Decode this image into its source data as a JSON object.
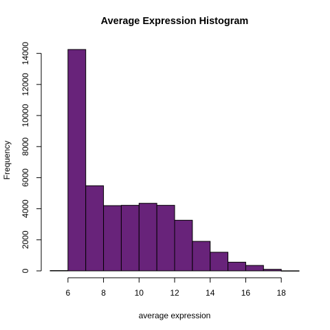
{
  "chart_data": {
    "type": "bar",
    "title": "Average Expression Histogram",
    "xlabel": "average expression",
    "ylabel": "Frequency",
    "bar_color": "#68237a",
    "bins": [
      {
        "start": 5,
        "end": 6,
        "count": 20
      },
      {
        "start": 6,
        "end": 7,
        "count": 14250
      },
      {
        "start": 7,
        "end": 8,
        "count": 5480
      },
      {
        "start": 8,
        "end": 9,
        "count": 4200
      },
      {
        "start": 9,
        "end": 10,
        "count": 4220
      },
      {
        "start": 10,
        "end": 11,
        "count": 4350
      },
      {
        "start": 11,
        "end": 12,
        "count": 4220
      },
      {
        "start": 12,
        "end": 13,
        "count": 3260
      },
      {
        "start": 13,
        "end": 14,
        "count": 1900
      },
      {
        "start": 14,
        "end": 15,
        "count": 1200
      },
      {
        "start": 15,
        "end": 16,
        "count": 560
      },
      {
        "start": 16,
        "end": 17,
        "count": 350
      },
      {
        "start": 17,
        "end": 18,
        "count": 100
      },
      {
        "start": 18,
        "end": 19,
        "count": 5
      }
    ],
    "xlim": [
      5,
      19
    ],
    "ylim": [
      0,
      14250
    ],
    "xticks": [
      6,
      8,
      10,
      12,
      14,
      16,
      18
    ],
    "yticks": [
      0,
      2000,
      4000,
      6000,
      8000,
      10000,
      12000,
      14000
    ],
    "grid": false,
    "legend": "none"
  }
}
